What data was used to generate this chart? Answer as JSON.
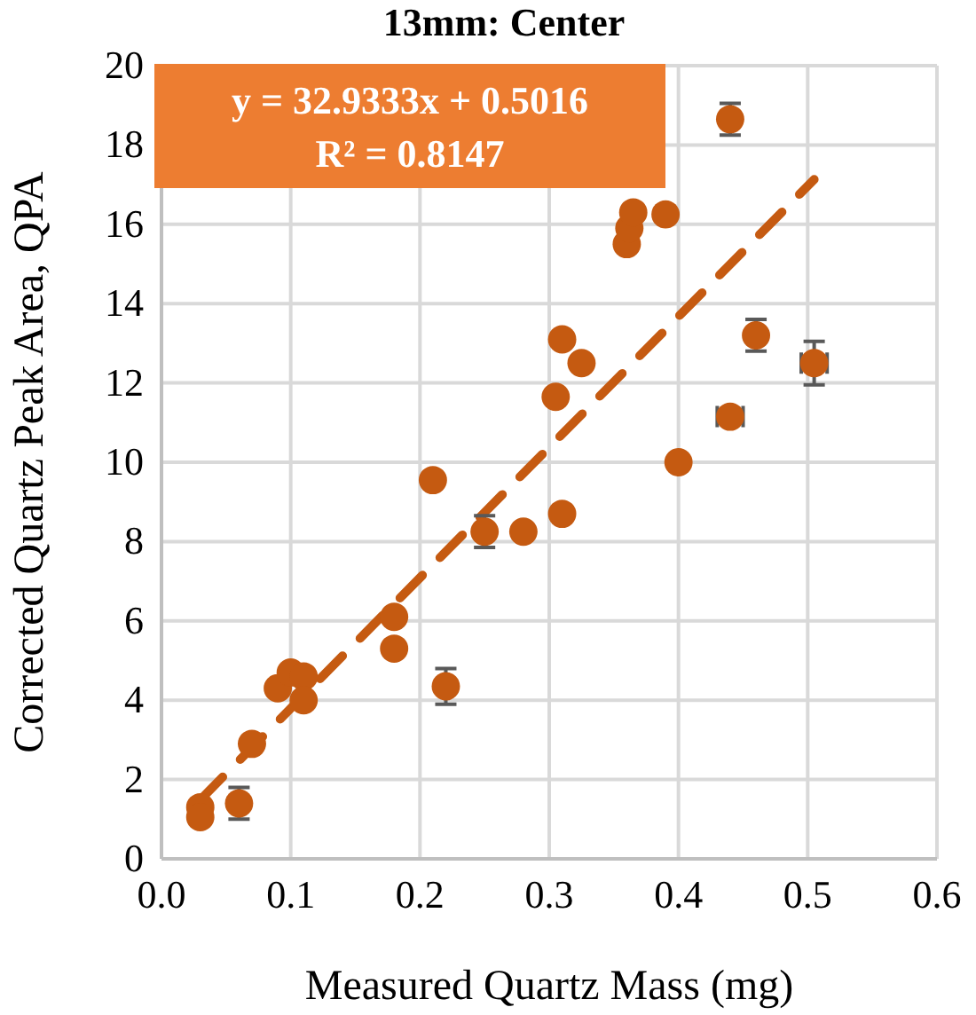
{
  "chart_data": {
    "type": "scatter",
    "title": "13mm: Center",
    "xlabel": "Measured Quartz Mass (mg)",
    "ylabel": "Corrected Quartz Peak Area, QPA",
    "xlim": [
      0,
      0.6
    ],
    "xticks": [
      {
        "value": 0,
        "label": "0.0"
      },
      0.1,
      0.2,
      0.3,
      0.4,
      0.5,
      0.6
    ],
    "ylim": [
      0,
      20
    ],
    "yticks": [
      0,
      2,
      4,
      6,
      8,
      10,
      12,
      14,
      16,
      18,
      20
    ],
    "grid": true,
    "marker": "circle",
    "annotations": [
      "y = 32.9333x + 0.5016",
      "R² = 0.8147"
    ],
    "series": [
      {
        "color": "#c55a11",
        "x": [
          0.03,
          0.03,
          0.06,
          0.07,
          0.09,
          0.1,
          0.11,
          0.11,
          0.18,
          0.18,
          0.21,
          0.22,
          0.25,
          0.28,
          0.31,
          0.305,
          0.31,
          0.325,
          0.36,
          0.362,
          0.365,
          0.39,
          0.4,
          0.44,
          0.44,
          0.46,
          0.505
        ],
        "values": [
          1.3,
          1.05,
          1.4,
          2.9,
          4.3,
          4.7,
          4.6,
          4.0,
          6.1,
          5.3,
          9.55,
          4.35,
          8.25,
          8.25,
          8.7,
          11.65,
          13.1,
          12.5,
          15.5,
          15.9,
          16.3,
          16.25,
          10.0,
          11.15,
          18.65,
          13.2,
          12.5
        ],
        "errors": [
          null,
          null,
          0.4,
          null,
          null,
          null,
          null,
          null,
          null,
          null,
          null,
          0.45,
          0.4,
          null,
          null,
          null,
          null,
          null,
          null,
          null,
          null,
          null,
          null,
          null,
          0.4,
          0.4,
          0.55
        ],
        "xerrors": [
          null,
          null,
          null,
          null,
          null,
          null,
          null,
          null,
          null,
          null,
          null,
          null,
          null,
          null,
          null,
          null,
          null,
          null,
          null,
          null,
          null,
          null,
          null,
          0.01,
          null,
          null,
          0.01
        ]
      },
      {
        "type": "line",
        "color": "#c55a11",
        "line_style": "dashed",
        "marker": "none",
        "x": [
          0.03,
          0.505
        ],
        "values": [
          1.49,
          17.13
        ]
      }
    ]
  }
}
